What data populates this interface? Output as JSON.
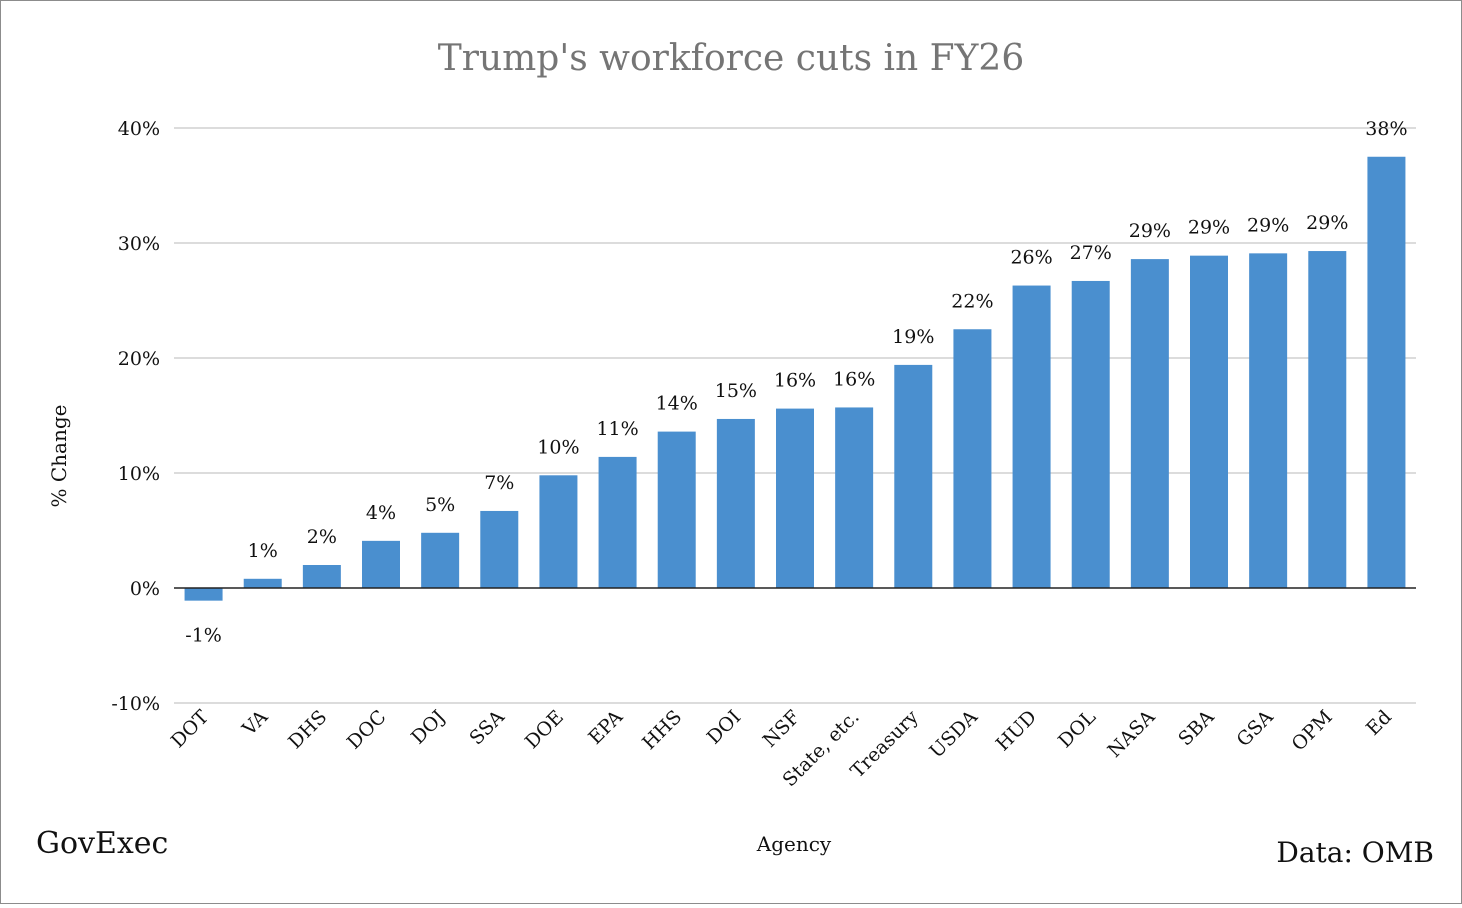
{
  "brand": "GovExec",
  "source": "Data: OMB",
  "chart_data": {
    "type": "bar",
    "title": "Trump's workforce cuts in FY26",
    "xlabel": "Agency",
    "ylabel": "% Change",
    "ylim": [
      -10,
      40
    ],
    "yticks": [
      -10,
      0,
      10,
      20,
      30,
      40
    ],
    "ytick_labels": [
      "-10%",
      "0%",
      "10%",
      "20%",
      "30%",
      "40%"
    ],
    "grid": true,
    "bar_color": "#4a8fcf",
    "categories": [
      "DOT",
      "VA",
      "DHS",
      "DOC",
      "DOJ",
      "SSA",
      "DOE",
      "EPA",
      "HHS",
      "DOI",
      "NSF",
      "State, etc.",
      "Treasury",
      "USDA",
      "HUD",
      "DOL",
      "NASA",
      "SBA",
      "GSA",
      "OPM",
      "Ed"
    ],
    "values": [
      -1.1,
      0.8,
      2.0,
      4.1,
      4.8,
      6.7,
      9.8,
      11.4,
      13.6,
      14.7,
      15.6,
      15.7,
      19.4,
      22.5,
      26.3,
      26.7,
      28.6,
      28.9,
      29.1,
      29.3,
      37.5
    ],
    "data_labels": [
      "-1%",
      "1%",
      "2%",
      "4%",
      "5%",
      "7%",
      "10%",
      "11%",
      "14%",
      "15%",
      "16%",
      "16%",
      "19%",
      "22%",
      "26%",
      "27%",
      "29%",
      "29%",
      "29%",
      "29%",
      "38%"
    ]
  }
}
